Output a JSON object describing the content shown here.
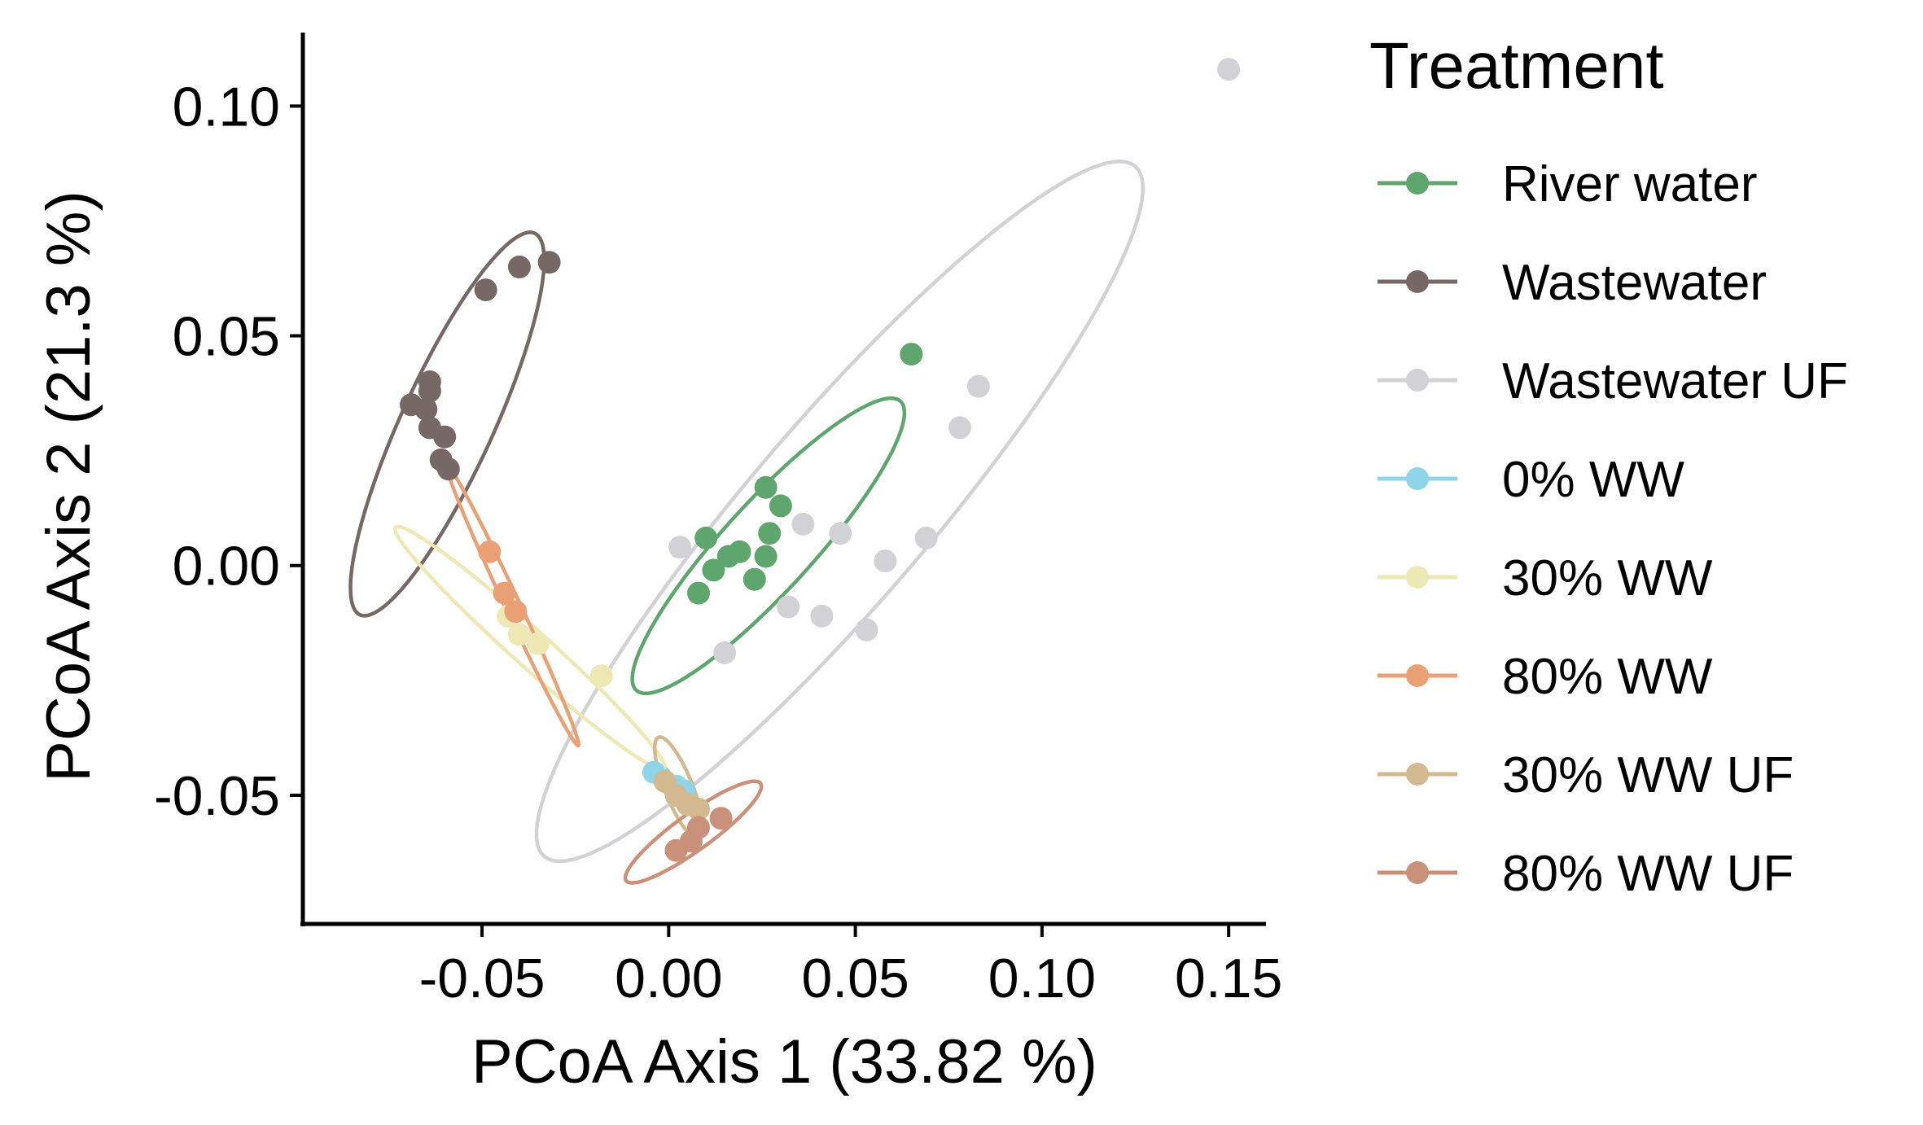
{
  "chart_data": {
    "type": "scatter",
    "xlabel": "PCoA Axis 1 (33.82 %)",
    "ylabel": "PCoA Axis 2 (21.3 %)",
    "xlim": [
      -0.098,
      0.16
    ],
    "ylim": [
      -0.078,
      0.116
    ],
    "xticks": [
      "-0.05",
      "0.00",
      "0.05",
      "0.10",
      "0.15"
    ],
    "yticks": [
      "-0.05",
      "0.00",
      "0.05",
      "0.10"
    ],
    "grid": false,
    "legend": {
      "title": "Treatment",
      "position": "right"
    },
    "series": [
      {
        "name": "River water",
        "color": "#5fa66e",
        "points": [
          [
            0.065,
            0.046
          ],
          [
            0.026,
            0.017
          ],
          [
            0.03,
            0.013
          ],
          [
            0.027,
            0.007
          ],
          [
            0.01,
            0.006
          ],
          [
            0.019,
            0.003
          ],
          [
            0.016,
            0.002
          ],
          [
            0.026,
            0.002
          ],
          [
            0.012,
            -0.001
          ],
          [
            0.023,
            -0.003
          ],
          [
            0.008,
            -0.006
          ]
        ],
        "ellipse": {
          "center": [
            0.0267,
            0.0043
          ],
          "semi_axes": [
            0.0474,
            0.0107
          ],
          "angle_deg": 41
        }
      },
      {
        "name": "Wastewater",
        "color": "#766865",
        "points": [
          [
            -0.032,
            0.066
          ],
          [
            -0.04,
            0.065
          ],
          [
            -0.049,
            0.06
          ],
          [
            -0.064,
            0.04
          ],
          [
            -0.064,
            0.038
          ],
          [
            -0.069,
            0.035
          ],
          [
            -0.065,
            0.034
          ],
          [
            -0.064,
            0.03
          ],
          [
            -0.06,
            0.028
          ],
          [
            -0.061,
            0.023
          ],
          [
            -0.059,
            0.021
          ]
        ],
        "ellipse": {
          "center": [
            -0.0593,
            0.0308
          ],
          "semi_axes": [
            0.0477,
            0.0118
          ],
          "angle_deg": 60
        }
      },
      {
        "name": "Wastewater UF",
        "color": "#d2d1d5",
        "points": [
          [
            0.15,
            0.108
          ],
          [
            0.083,
            0.039
          ],
          [
            0.078,
            0.03
          ],
          [
            0.036,
            0.009
          ],
          [
            0.046,
            0.007
          ],
          [
            0.069,
            0.006
          ],
          [
            0.003,
            0.004
          ],
          [
            0.058,
            0.001
          ],
          [
            0.032,
            -0.009
          ],
          [
            0.041,
            -0.011
          ],
          [
            0.053,
            -0.014
          ],
          [
            0.015,
            -0.019
          ]
        ],
        "ellipse": {
          "center": [
            0.0458,
            0.0118
          ],
          "semi_axes": [
            0.1092,
            0.0218
          ],
          "angle_deg": 43
        }
      },
      {
        "name": "0% WW",
        "color": "#8fd4e8",
        "points": [
          [
            -0.004,
            -0.045
          ],
          [
            -0.001,
            -0.047
          ],
          [
            0.002,
            -0.048
          ],
          [
            0.004,
            -0.049
          ]
        ],
        "ellipse": {
          "center": [
            0.0014,
            -0.0482
          ],
          "semi_axes": [
            0.0058,
            0.0011
          ],
          "angle_deg": -53
        }
      },
      {
        "name": "30% WW",
        "color": "#eee8b4",
        "points": [
          [
            -0.043,
            -0.011
          ],
          [
            -0.04,
            -0.015
          ],
          [
            -0.035,
            -0.017
          ],
          [
            -0.018,
            -0.024
          ]
        ],
        "ellipse": {
          "center": [
            -0.0372,
            -0.0179
          ],
          "semi_axes": [
            0.0445,
            0.0043
          ],
          "angle_deg": -36
        }
      },
      {
        "name": "80% WW",
        "color": "#e9a074",
        "points": [
          [
            -0.048,
            0.003
          ],
          [
            -0.044,
            -0.006
          ],
          [
            -0.041,
            -0.01
          ]
        ],
        "ellipse": {
          "center": [
            -0.0418,
            -0.0087
          ],
          "semi_axes": [
            0.0352,
            0.0019
          ],
          "angle_deg": -60
        }
      },
      {
        "name": "30% WW UF",
        "color": "#d3b98f",
        "points": [
          [
            -0.001,
            -0.047
          ],
          [
            0.002,
            -0.05
          ],
          [
            0.005,
            -0.052
          ],
          [
            0.008,
            -0.053
          ]
        ],
        "ellipse": {
          "center": [
            0.0027,
            -0.0484
          ],
          "semi_axes": [
            0.0123,
            0.0036
          ],
          "angle_deg": -63
        }
      },
      {
        "name": "80% WW UF",
        "color": "#c99179",
        "points": [
          [
            0.014,
            -0.055
          ],
          [
            0.008,
            -0.057
          ],
          [
            0.006,
            -0.06
          ],
          [
            0.002,
            -0.062
          ]
        ],
        "ellipse": {
          "center": [
            0.0066,
            -0.058
          ],
          "semi_axes": [
            0.0209,
            0.0042
          ],
          "angle_deg": 30
        }
      }
    ]
  }
}
